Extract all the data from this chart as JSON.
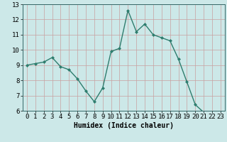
{
  "xlabel": "Humidex (Indice chaleur)",
  "x_values": [
    0,
    1,
    2,
    3,
    4,
    5,
    6,
    7,
    8,
    9,
    10,
    11,
    12,
    13,
    14,
    15,
    16,
    17,
    18,
    19,
    20,
    21,
    22,
    23
  ],
  "y_values": [
    9.0,
    9.1,
    9.2,
    9.5,
    8.9,
    8.7,
    8.1,
    7.3,
    6.6,
    7.5,
    9.9,
    10.1,
    12.6,
    11.2,
    11.7,
    11.0,
    10.8,
    10.6,
    9.4,
    7.9,
    6.4,
    5.9,
    5.9,
    5.9
  ],
  "line_color": "#2e7d6e",
  "marker": "D",
  "marker_size": 2,
  "bg_color": "#cce8e8",
  "grid_color_major": "#c8a0a0",
  "grid_color_minor": "#ddc8c8",
  "ylim": [
    6,
    13
  ],
  "xlim": [
    -0.5,
    23.5
  ],
  "yticks": [
    6,
    7,
    8,
    9,
    10,
    11,
    12,
    13
  ],
  "xticks": [
    0,
    1,
    2,
    3,
    4,
    5,
    6,
    7,
    8,
    9,
    10,
    11,
    12,
    13,
    14,
    15,
    16,
    17,
    18,
    19,
    20,
    21,
    22,
    23
  ],
  "xlabel_fontsize": 7,
  "tick_fontsize": 6.5,
  "line_width": 1.0,
  "spine_color": "#336666"
}
